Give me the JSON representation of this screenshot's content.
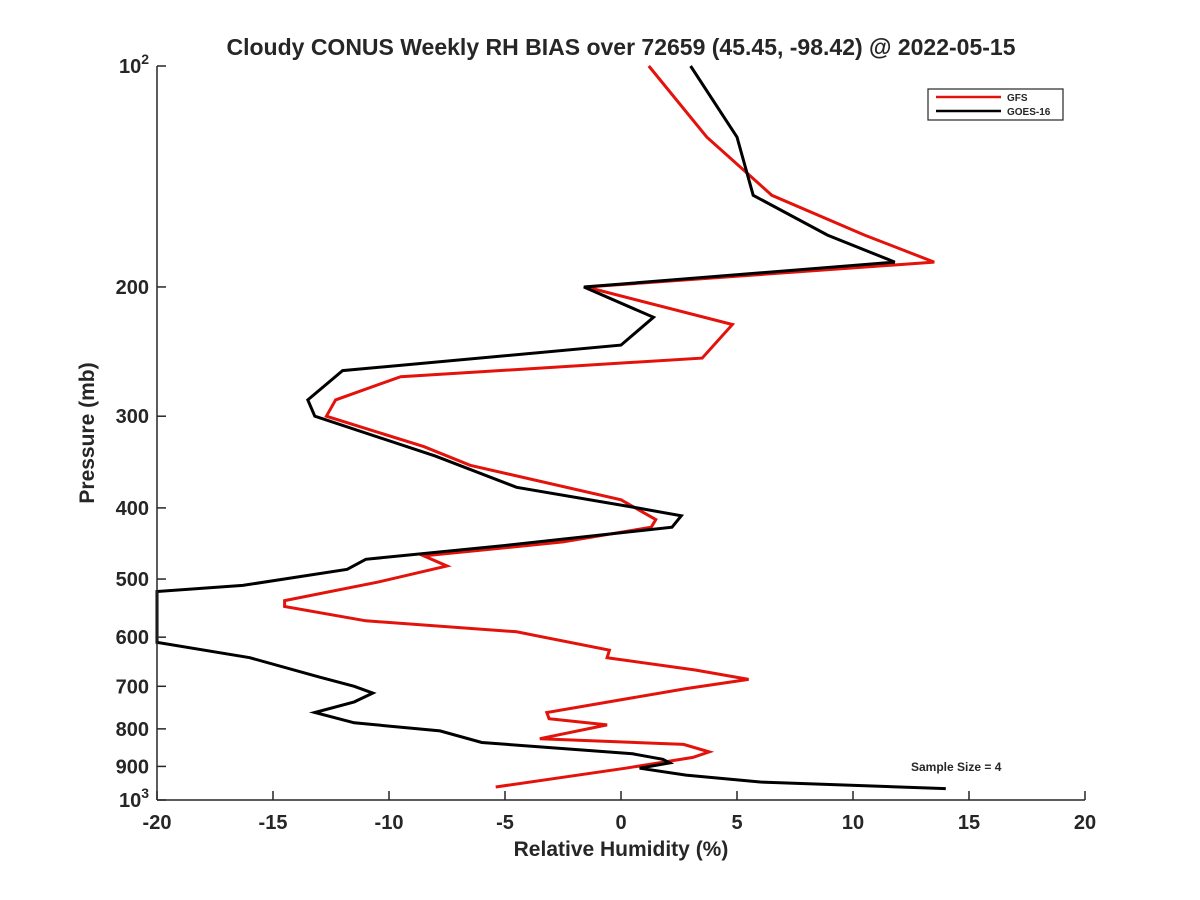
{
  "chart_data": {
    "type": "line",
    "title": "Cloudy CONUS Weekly RH BIAS over 72659 (45.45, -98.42) @ 2022-05-15",
    "xlabel": "Relative Humidity (%)",
    "ylabel": "Pressure (mb)",
    "xlim": [
      -20,
      20
    ],
    "ylim": [
      100,
      1000
    ],
    "yscale": "log",
    "y_reversed": true,
    "grid": false,
    "x_ticks": [
      -20,
      -15,
      -10,
      -5,
      0,
      5,
      10,
      15,
      20
    ],
    "x_tick_labels": [
      "-20",
      "-15",
      "-10",
      "-5",
      "0",
      "5",
      "10",
      "15",
      "20"
    ],
    "y_ticks": [
      100,
      200,
      300,
      400,
      500,
      600,
      700,
      800,
      900,
      1000
    ],
    "y_tick_labels": [
      {
        "value": 100,
        "base": "10",
        "exp": "2"
      },
      {
        "value": 200,
        "base": "200",
        "exp": ""
      },
      {
        "value": 300,
        "base": "300",
        "exp": ""
      },
      {
        "value": 400,
        "base": "400",
        "exp": ""
      },
      {
        "value": 500,
        "base": "500",
        "exp": ""
      },
      {
        "value": 600,
        "base": "600",
        "exp": ""
      },
      {
        "value": 700,
        "base": "700",
        "exp": ""
      },
      {
        "value": 800,
        "base": "800",
        "exp": ""
      },
      {
        "value": 900,
        "base": "900",
        "exp": ""
      },
      {
        "value": 1000,
        "base": "10",
        "exp": "3"
      }
    ],
    "legend_position": "top-right",
    "annotation": "Sample Size = 4",
    "series": [
      {
        "name": "GFS",
        "color": "#e3120b",
        "points": [
          [
            1.2,
            100
          ],
          [
            3.7,
            125
          ],
          [
            6.5,
            150
          ],
          [
            10.5,
            170
          ],
          [
            13.5,
            185
          ],
          [
            -1.5,
            200
          ],
          [
            4.8,
            225
          ],
          [
            3.5,
            250
          ],
          [
            -9.5,
            265
          ],
          [
            -12.3,
            285
          ],
          [
            -12.7,
            300
          ],
          [
            -8.5,
            330
          ],
          [
            -6.5,
            350
          ],
          [
            0,
            390
          ],
          [
            1.5,
            415
          ],
          [
            1.3,
            425
          ],
          [
            -2.5,
            445
          ],
          [
            -8.5,
            465
          ],
          [
            -7.5,
            480
          ],
          [
            -10.5,
            505
          ],
          [
            -14.5,
            535
          ],
          [
            -14.5,
            545
          ],
          [
            -11,
            570
          ],
          [
            -4.5,
            590
          ],
          [
            -0.5,
            625
          ],
          [
            -0.6,
            640
          ],
          [
            3.2,
            665
          ],
          [
            5.5,
            685
          ],
          [
            2.8,
            705
          ],
          [
            -3.2,
            760
          ],
          [
            -3.1,
            775
          ],
          [
            -0.6,
            790
          ],
          [
            -3.5,
            825
          ],
          [
            2.7,
            840
          ],
          [
            3.8,
            860
          ],
          [
            3.1,
            875
          ],
          [
            0.2,
            905
          ],
          [
            -5.4,
            960
          ]
        ]
      },
      {
        "name": "GOES-16",
        "color": "#000000",
        "points": [
          [
            3,
            100
          ],
          [
            5,
            125
          ],
          [
            5.7,
            150
          ],
          [
            8.9,
            170
          ],
          [
            11.8,
            185
          ],
          [
            -1.6,
            200
          ],
          [
            1.4,
            220
          ],
          [
            0,
            240
          ],
          [
            -12,
            260
          ],
          [
            -13.5,
            285
          ],
          [
            -13.2,
            300
          ],
          [
            -8,
            340
          ],
          [
            -4.5,
            375
          ],
          [
            0.7,
            400
          ],
          [
            2.6,
            410
          ],
          [
            2.2,
            425
          ],
          [
            -5,
            450
          ],
          [
            -11,
            470
          ],
          [
            -11.8,
            485
          ],
          [
            -16.3,
            510
          ],
          [
            -20,
            520
          ],
          [
            -20,
            610
          ],
          [
            -16,
            640
          ],
          [
            -13,
            680
          ],
          [
            -11.5,
            700
          ],
          [
            -10.7,
            715
          ],
          [
            -11.5,
            735
          ],
          [
            -13.2,
            760
          ],
          [
            -11.5,
            785
          ],
          [
            -7.8,
            805
          ],
          [
            -6,
            835
          ],
          [
            0.5,
            865
          ],
          [
            1.8,
            880
          ],
          [
            2.1,
            890
          ],
          [
            0.8,
            905
          ],
          [
            2.8,
            925
          ],
          [
            6,
            945
          ],
          [
            14,
            965
          ]
        ]
      }
    ]
  }
}
